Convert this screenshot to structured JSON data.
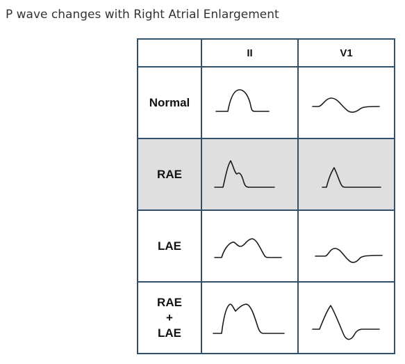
{
  "title": "P wave changes with Right Atrial Enlargement",
  "table": {
    "corner": "",
    "columns": [
      "II",
      "V1"
    ],
    "rows": [
      {
        "label_lines": [
          "Normal"
        ],
        "shaded": false,
        "waves": [
          "normal-lead-ii-p-wave",
          "normal-lead-v1-p-wave"
        ]
      },
      {
        "label_lines": [
          "RAE"
        ],
        "shaded": true,
        "waves": [
          "rae-lead-ii-p-wave",
          "rae-lead-v1-p-wave"
        ]
      },
      {
        "label_lines": [
          "LAE"
        ],
        "shaded": false,
        "waves": [
          "lae-lead-ii-p-wave",
          "lae-lead-v1-p-wave"
        ]
      },
      {
        "label_lines": [
          "RAE",
          "+",
          "LAE"
        ],
        "shaded": false,
        "waves": [
          "rae-lae-lead-ii-p-wave",
          "rae-lae-lead-v1-p-wave"
        ]
      }
    ],
    "colors": {
      "grid": "#2f4f6a",
      "shaded_row": "#e0dfdf",
      "wave": "#1a1a1a"
    }
  }
}
